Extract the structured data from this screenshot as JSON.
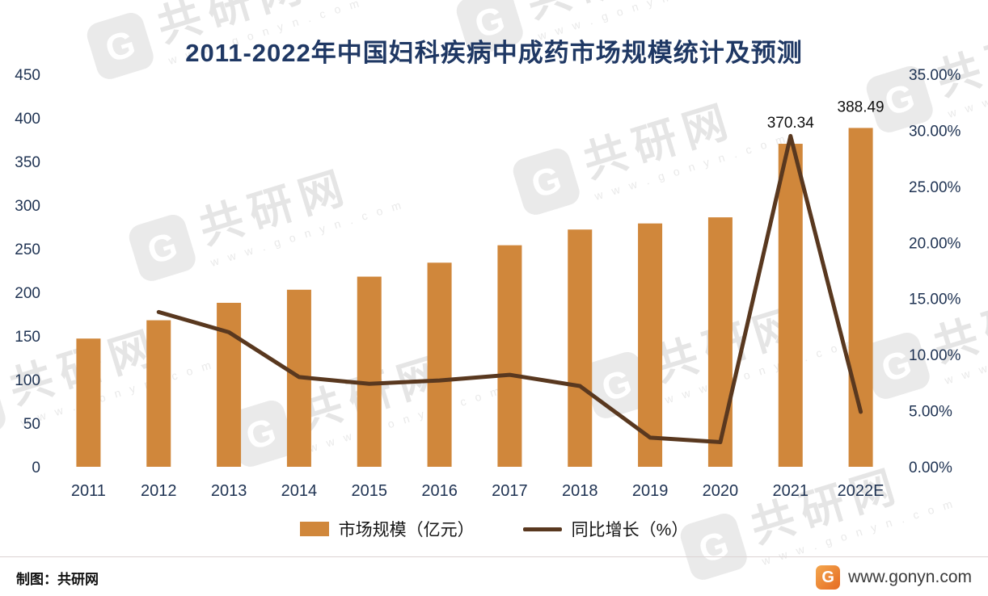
{
  "chart_data": {
    "type": "bar+line combo",
    "title": "2011-2022年中国妇科疾病中成药市场规模统计及预测",
    "categories": [
      "2011",
      "2012",
      "2013",
      "2014",
      "2015",
      "2016",
      "2017",
      "2018",
      "2019",
      "2020",
      "2021",
      "2022E"
    ],
    "series": [
      {
        "name": "市场规模（亿元）",
        "type": "bar",
        "axis": "left",
        "color": "#D0873B",
        "values": [
          147,
          168,
          188,
          203,
          218,
          234,
          254,
          272,
          279,
          286,
          370.34,
          388.49
        ]
      },
      {
        "name": "同比增长（%）",
        "type": "line",
        "axis": "right",
        "color": "#59381F",
        "values": [
          null,
          13.8,
          12.0,
          8.0,
          7.4,
          7.7,
          8.2,
          7.2,
          2.6,
          2.2,
          29.5,
          4.9
        ]
      }
    ],
    "data_labels": [
      {
        "category": "2021",
        "index": 10,
        "text": "370.34"
      },
      {
        "category": "2022E",
        "index": 11,
        "text": "388.49"
      }
    ],
    "left_axis": {
      "min": 0,
      "max": 450,
      "tick_labels": [
        "450",
        "400",
        "350",
        "300",
        "250",
        "200",
        "150",
        "100",
        "50",
        "0"
      ]
    },
    "right_axis": {
      "min": 0,
      "max": 35,
      "tick_labels": [
        "35.00%",
        "30.00%",
        "25.00%",
        "20.00%",
        "15.00%",
        "10.00%",
        "5.00%",
        "0.00%"
      ]
    },
    "grid": false,
    "legend_position": "bottom"
  },
  "watermark": {
    "logo_letter": "G",
    "brand": "共研网",
    "url_spaced": "w w w . g o n y n . c o m"
  },
  "footer": {
    "credit": "制图：共研网",
    "logo_letter": "G",
    "website": "www.gonyn.com"
  },
  "colors": {
    "title": "#1F3864",
    "axis_text": "#1E3252",
    "data_label_text": "#101010",
    "bar": "#D0873B",
    "line": "#59381F",
    "footer_logo_orange": "#E56A22"
  }
}
